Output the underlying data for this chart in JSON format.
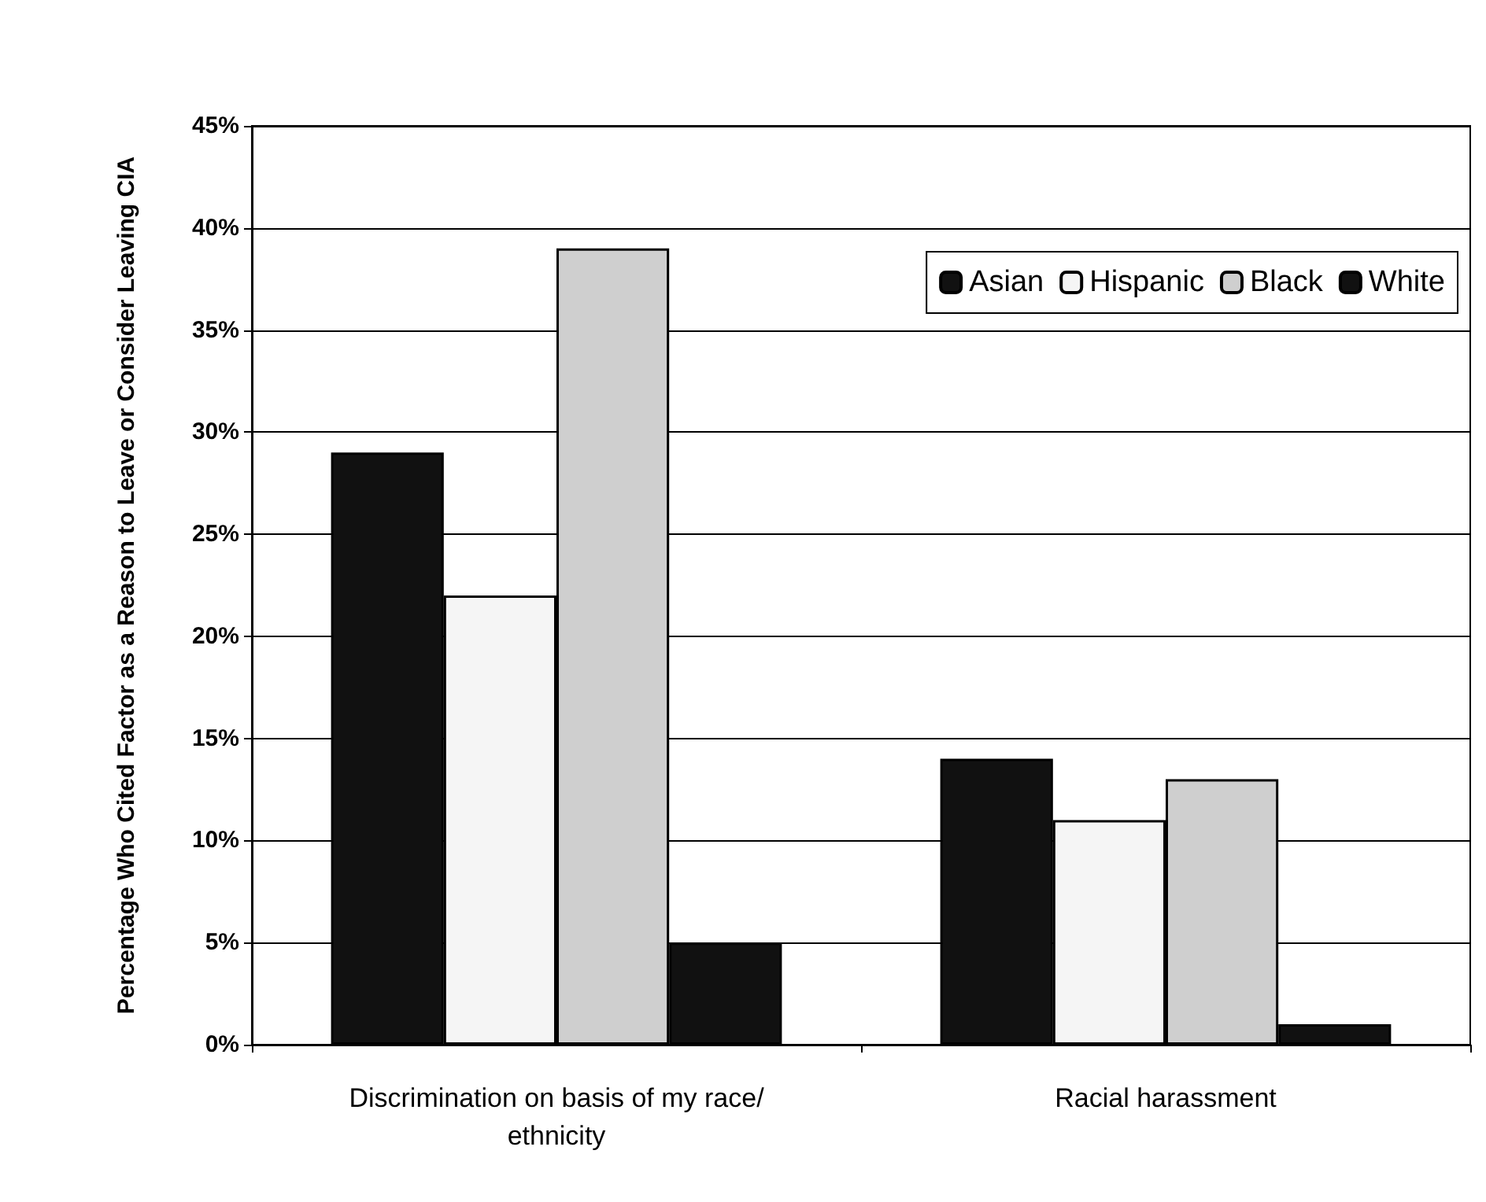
{
  "chart_data": {
    "type": "bar",
    "ylabel": "Percentage Who Cited Factor as a Reason to Leave or Consider Leaving CIA",
    "categories": [
      "Discrimination on basis of my race/ethnicity",
      "Racial harassment"
    ],
    "series": [
      {
        "name": "Asian",
        "color": "#111111",
        "values": [
          29,
          14
        ]
      },
      {
        "name": "Hispanic",
        "color": "#f5f5f5",
        "values": [
          22,
          11
        ]
      },
      {
        "name": "Black",
        "color": "#cfcfcf",
        "values": [
          39,
          13
        ]
      },
      {
        "name": "White",
        "color": "#111111",
        "values": [
          5,
          1
        ]
      }
    ],
    "ylim": [
      0,
      45
    ],
    "yticks": [
      {
        "value": 0,
        "label": "0%"
      },
      {
        "value": 5,
        "label": "5%"
      },
      {
        "value": 10,
        "label": "10%"
      },
      {
        "value": 15,
        "label": "15%"
      },
      {
        "value": 20,
        "label": "20%"
      },
      {
        "value": 25,
        "label": "25%"
      },
      {
        "value": 30,
        "label": "30%"
      },
      {
        "value": 35,
        "label": "35%"
      },
      {
        "value": 40,
        "label": "40%"
      },
      {
        "value": 45,
        "label": "45%"
      }
    ],
    "grid": "y",
    "legend": "top right"
  }
}
